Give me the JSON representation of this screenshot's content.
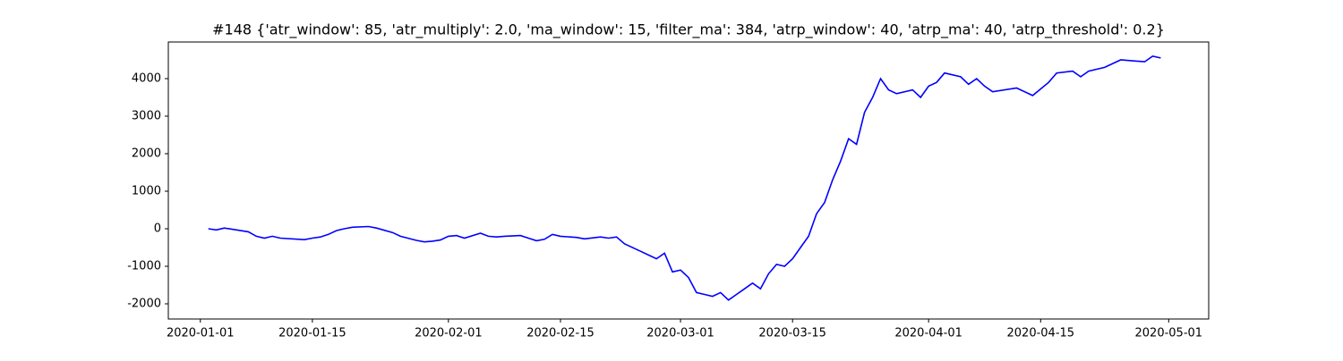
{
  "chart_data": {
    "type": "line",
    "title": "#148 {'atr_window': 85, 'atr_multiply': 2.0, 'ma_window': 15, 'filter_ma': 384, 'atrp_window': 40, 'atrp_ma': 40, 'atrp_threshold': 0.2}",
    "x": [
      "2020-01-02",
      "2020-01-03",
      "2020-01-04",
      "2020-01-07",
      "2020-01-08",
      "2020-01-09",
      "2020-01-10",
      "2020-01-11",
      "2020-01-14",
      "2020-01-15",
      "2020-01-16",
      "2020-01-17",
      "2020-01-18",
      "2020-01-19",
      "2020-01-20",
      "2020-01-22",
      "2020-01-23",
      "2020-01-25",
      "2020-01-26",
      "2020-01-28",
      "2020-01-29",
      "2020-01-30",
      "2020-01-31",
      "2020-02-01",
      "2020-02-02",
      "2020-02-03",
      "2020-02-05",
      "2020-02-06",
      "2020-02-07",
      "2020-02-08",
      "2020-02-10",
      "2020-02-11",
      "2020-02-12",
      "2020-02-13",
      "2020-02-14",
      "2020-02-15",
      "2020-02-17",
      "2020-02-18",
      "2020-02-20",
      "2020-02-21",
      "2020-02-22",
      "2020-02-23",
      "2020-02-25",
      "2020-02-26",
      "2020-02-27",
      "2020-02-28",
      "2020-02-29",
      "2020-03-01",
      "2020-03-02",
      "2020-03-03",
      "2020-03-04",
      "2020-03-05",
      "2020-03-06",
      "2020-03-07",
      "2020-03-08",
      "2020-03-09",
      "2020-03-10",
      "2020-03-11",
      "2020-03-12",
      "2020-03-13",
      "2020-03-14",
      "2020-03-15",
      "2020-03-16",
      "2020-03-17",
      "2020-03-18",
      "2020-03-19",
      "2020-03-20",
      "2020-03-21",
      "2020-03-22",
      "2020-03-23",
      "2020-03-24",
      "2020-03-25",
      "2020-03-26",
      "2020-03-27",
      "2020-03-28",
      "2020-03-30",
      "2020-03-31",
      "2020-04-01",
      "2020-04-02",
      "2020-04-03",
      "2020-04-05",
      "2020-04-06",
      "2020-04-07",
      "2020-04-08",
      "2020-04-09",
      "2020-04-12",
      "2020-04-14",
      "2020-04-16",
      "2020-04-17",
      "2020-04-19",
      "2020-04-20",
      "2020-04-21",
      "2020-04-23",
      "2020-04-25",
      "2020-04-28",
      "2020-04-29",
      "2020-04-30"
    ],
    "series": [
      {
        "color": "#0000ff",
        "values": [
          0,
          -30,
          20,
          -80,
          -200,
          -250,
          -200,
          -250,
          -290,
          -250,
          -220,
          -150,
          -50,
          0,
          40,
          60,
          20,
          -100,
          -200,
          -310,
          -350,
          -330,
          -300,
          -200,
          -180,
          -250,
          -120,
          -200,
          -220,
          -200,
          -180,
          -250,
          -320,
          -280,
          -150,
          -200,
          -230,
          -270,
          -220,
          -250,
          -220,
          -400,
          -600,
          -700,
          -800,
          -650,
          -1150,
          -1100,
          -1300,
          -1700,
          -1750,
          -1800,
          -1700,
          -1900,
          -1750,
          -1600,
          -1450,
          -1600,
          -1200,
          -950,
          -1000,
          -800,
          -500,
          -200,
          400,
          700,
          1300,
          1800,
          2400,
          2250,
          3100,
          3500,
          4000,
          3700,
          3600,
          3700,
          3500,
          3800,
          3900,
          4150,
          4050,
          3850,
          4000,
          3800,
          3650,
          3750,
          3550,
          3900,
          4150,
          4200,
          4050,
          4200,
          4300,
          4500,
          4450,
          4600,
          4550
        ]
      }
    ],
    "xlim": [
      "2019-12-28",
      "2020-05-06"
    ],
    "xticks": [
      "2020-01-01",
      "2020-01-15",
      "2020-02-01",
      "2020-02-15",
      "2020-03-01",
      "2020-03-15",
      "2020-04-01",
      "2020-04-15",
      "2020-05-01"
    ],
    "ylim": [
      -2405,
      4976
    ],
    "yticks": [
      -2000,
      -1000,
      0,
      1000,
      2000,
      3000,
      4000
    ]
  }
}
